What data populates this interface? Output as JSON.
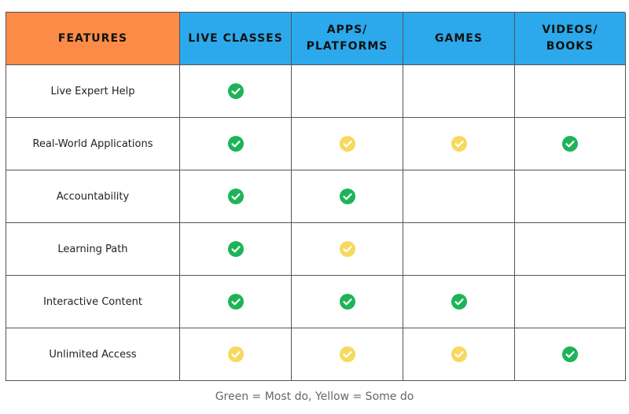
{
  "table": {
    "header": [
      "FEATURES",
      "LIVE CLASSES",
      "APPS/\nPLATFORMS",
      "GAMES",
      "VIDEOS/\nBOOKS"
    ],
    "header_colors": [
      "#fb8c48",
      "#2ca9ec",
      "#2ca9ec",
      "#2ca9ec",
      "#2ca9ec"
    ],
    "rows": [
      {
        "feature": "Live Expert Help",
        "cells": [
          "green",
          null,
          null,
          null
        ]
      },
      {
        "feature": "Real-World Applications",
        "cells": [
          "green",
          "yellow",
          "yellow",
          "green"
        ]
      },
      {
        "feature": "Accountability",
        "cells": [
          "green",
          "green",
          null,
          null
        ]
      },
      {
        "feature": "Learning Path",
        "cells": [
          "green",
          "yellow",
          null,
          null
        ]
      },
      {
        "feature": "Interactive Content",
        "cells": [
          "green",
          "green",
          "green",
          null
        ]
      },
      {
        "feature": "Unlimited Access",
        "cells": [
          "yellow",
          "yellow",
          "yellow",
          "green"
        ]
      }
    ],
    "icon_colors": {
      "green": "#1db457",
      "yellow": "#f6d95e"
    },
    "caption": "Green = Most do, Yellow = Some do"
  }
}
